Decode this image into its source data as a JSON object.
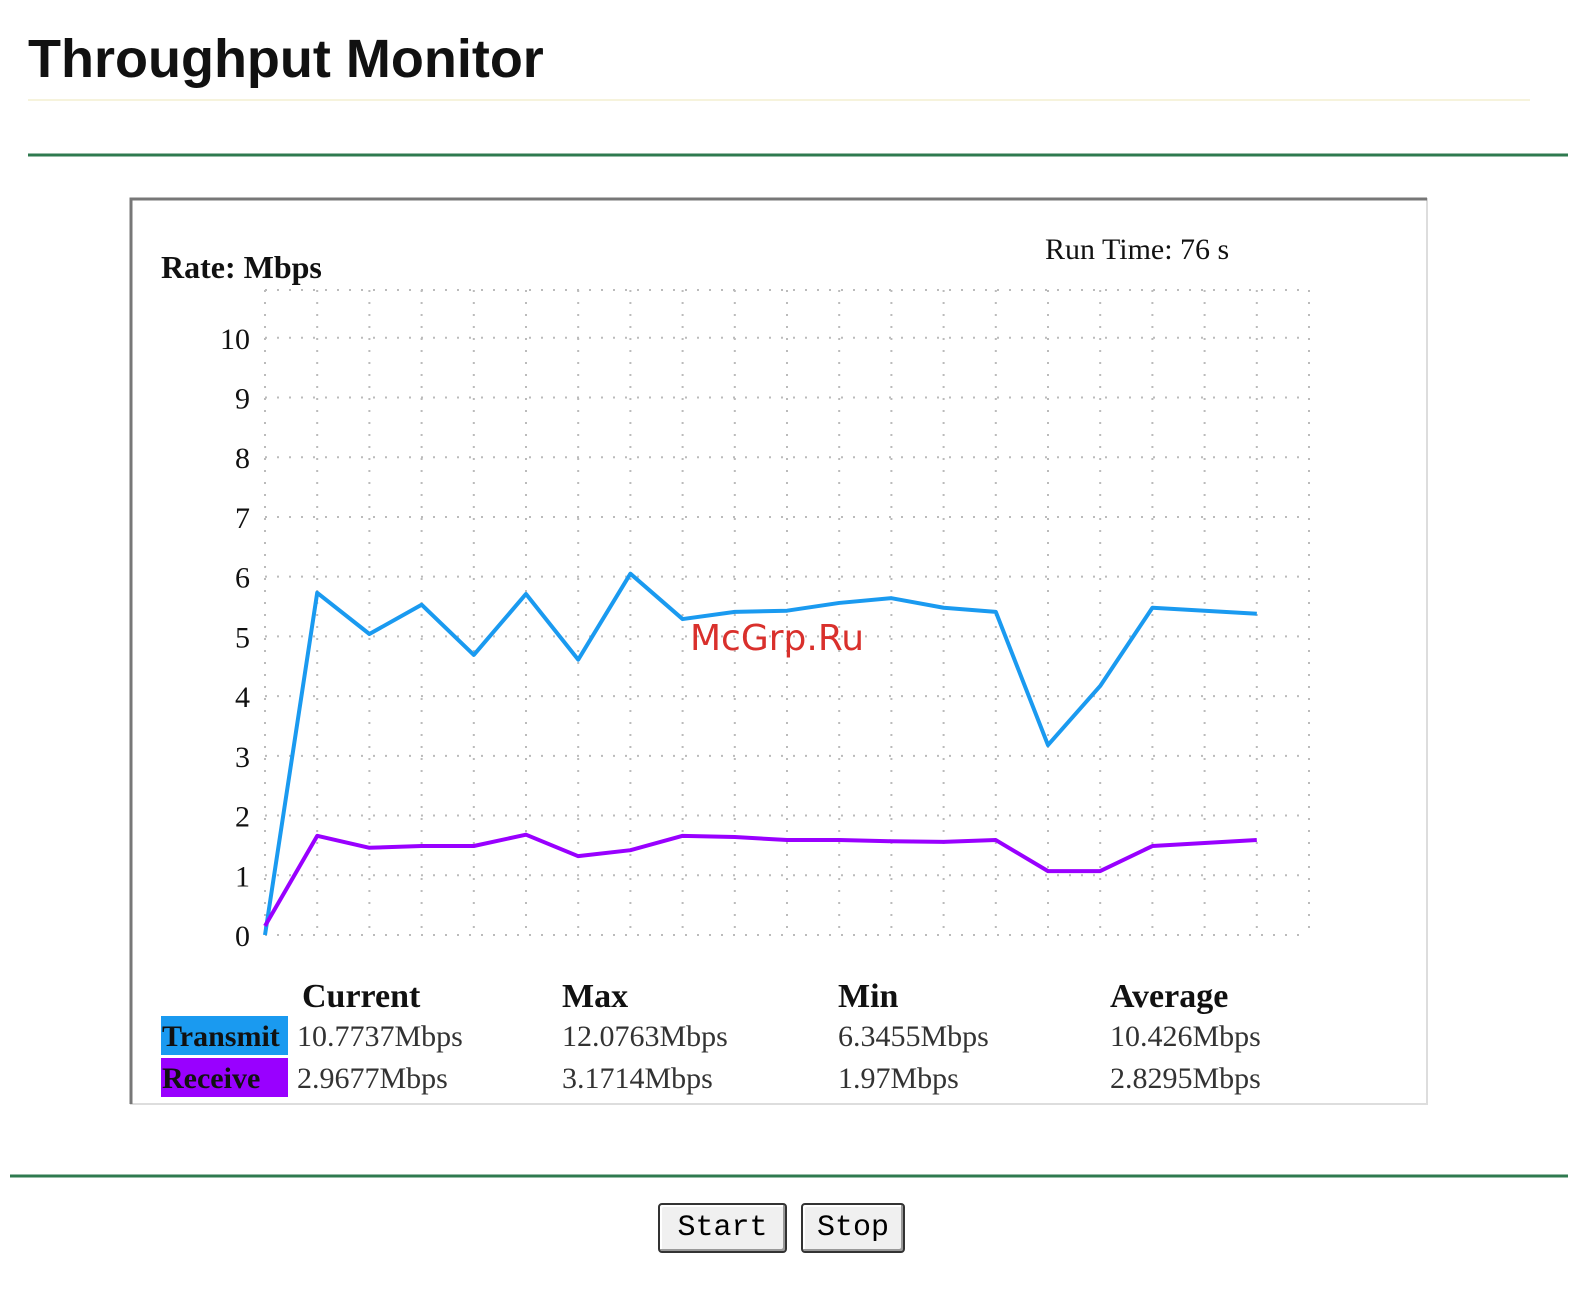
{
  "title": "Throughput Monitor",
  "chart_data": {
    "type": "line",
    "ylabel": "Rate: Mbps",
    "run_time": "Run Time: 76 s",
    "watermark": "McGrp.Ru",
    "x": [
      0,
      1,
      2,
      3,
      4,
      5,
      6,
      7,
      8,
      9,
      10,
      11,
      12,
      13,
      14,
      15,
      16,
      17,
      18,
      19
    ],
    "xlim": [
      0,
      20
    ],
    "ylim": [
      0,
      10.8
    ],
    "yticks": [
      0,
      1,
      2,
      3,
      4,
      5,
      6,
      7,
      8,
      9,
      10
    ],
    "grid": true,
    "series": [
      {
        "name": "Transmit",
        "color": "#1a9af0",
        "values": [
          0,
          5.73,
          5.04,
          5.53,
          4.69,
          5.71,
          4.61,
          6.05,
          5.29,
          5.41,
          5.43,
          5.56,
          5.64,
          5.48,
          5.41,
          3.18,
          4.17,
          5.48,
          5.43,
          5.38
        ]
      },
      {
        "name": "Receive",
        "color": "#9900ff",
        "values": [
          0.15,
          1.66,
          1.46,
          1.49,
          1.49,
          1.68,
          1.32,
          1.42,
          1.66,
          1.64,
          1.59,
          1.59,
          1.57,
          1.56,
          1.59,
          1.07,
          1.07,
          1.49,
          1.54,
          1.59
        ]
      }
    ]
  },
  "stats": {
    "columns": [
      "Current",
      "Max",
      "Min",
      "Average"
    ],
    "rows": [
      {
        "values": [
          "10.7737Mbps",
          "12.0763Mbps",
          "6.3455Mbps",
          "10.426Mbps"
        ]
      },
      {
        "values": [
          "2.9677Mbps",
          "3.1714Mbps",
          "1.97Mbps",
          "2.8295Mbps"
        ]
      }
    ]
  },
  "buttons": [
    "Start",
    "Stop"
  ]
}
